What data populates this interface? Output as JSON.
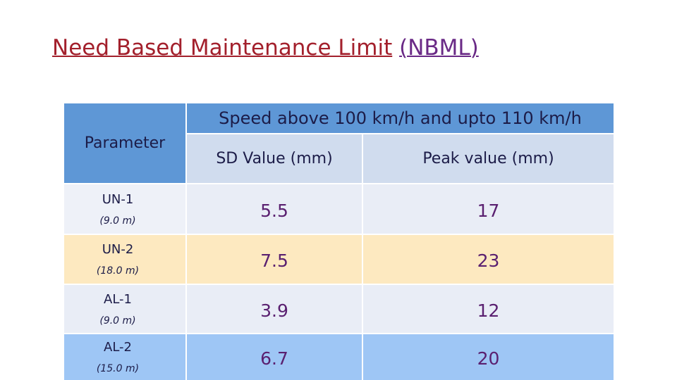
{
  "header": {
    "title": "Need Based Maintenance Limit",
    "title_abbr": "(NBML)"
  },
  "table": {
    "parameter_header": "Parameter",
    "group_header": "Speed above 100 km/h and upto 110 km/h",
    "columns": [
      "SD Value (mm)",
      "Peak value (mm)"
    ],
    "rows": [
      {
        "name": "UN-1",
        "length": "(9.0 m)",
        "sd": 5.5,
        "peak": 17
      },
      {
        "name": "UN-2",
        "length": "(18.0 m)",
        "sd": 7.5,
        "peak": 23
      },
      {
        "name": "AL-1",
        "length": "(9.0 m)",
        "sd": 3.9,
        "peak": 12
      },
      {
        "name": "AL-2",
        "length": "(15.0 m)",
        "sd": 6.7,
        "peak": 20
      }
    ]
  }
}
